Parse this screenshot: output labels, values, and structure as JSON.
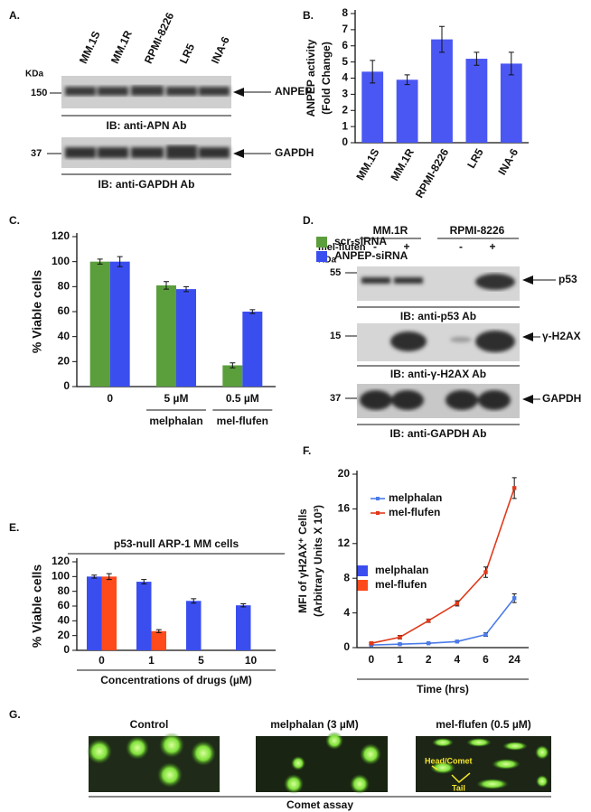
{
  "blots": {
    "A": {
      "label": "A.",
      "lanes": [
        "MM.1S",
        "MM.1R",
        "RPMI-8226",
        "LR5",
        "INA-6"
      ],
      "kda": "KDa",
      "rows": [
        {
          "marker": "150",
          "protein": "ANPEP",
          "antibody": "IB: anti-APN Ab"
        },
        {
          "marker": "37",
          "protein": "GAPDH",
          "antibody": "IB: anti-GAPDH Ab"
        }
      ]
    },
    "D": {
      "label": "D.",
      "groups": [
        "MM.1R",
        "RPMI-8226"
      ],
      "treatment": "mel-flufen",
      "signs": [
        "-",
        "+",
        "-",
        "+"
      ],
      "kda": "KDa",
      "rows": [
        {
          "marker": "55",
          "protein": "p53",
          "antibody": "IB: anti-p53 Ab"
        },
        {
          "marker": "15",
          "protein": "γ-H2AX",
          "antibody": "IB: anti-γ-H2AX Ab"
        },
        {
          "marker": "37",
          "protein": "GAPDH",
          "antibody": "IB: anti-GAPDH Ab"
        }
      ]
    }
  },
  "chart_data": [
    {
      "type": "bar",
      "label": "B.",
      "y_label": [
        "ANPEP activity",
        "(Fold Change)"
      ],
      "categories": [
        "MM.1S",
        "MM.1R",
        "RPMI-8226",
        "LR5",
        "INA-6"
      ],
      "values": [
        4.4,
        3.9,
        6.4,
        5.2,
        4.9
      ],
      "errors": [
        0.7,
        0.3,
        0.8,
        0.4,
        0.7
      ],
      "color": "#4a57f2",
      "ylim": [
        0,
        8
      ],
      "yticks": [
        0,
        1,
        2,
        3,
        4,
        5,
        6,
        7,
        8
      ]
    },
    {
      "type": "bar",
      "label": "C.",
      "y_label": "% Viable cells",
      "categories": [
        "0",
        "5 µM",
        "0.5 µM"
      ],
      "category_notes": [
        null,
        "melphalan",
        "mel-flufen"
      ],
      "series": [
        {
          "name": "scr-siRNA",
          "color": "#5b9e3c",
          "values": [
            100,
            81,
            17
          ],
          "errors": [
            2,
            3,
            2
          ]
        },
        {
          "name": "ANPEP-siRNA",
          "color": "#3a4ef0",
          "values": [
            100,
            78,
            60
          ],
          "errors": [
            4,
            2,
            1.5
          ]
        }
      ],
      "ylim": [
        0,
        120
      ],
      "yticks": [
        0,
        20,
        40,
        60,
        80,
        100,
        120
      ],
      "legend": "top-right"
    },
    {
      "type": "bar",
      "label": "E.",
      "title": "p53-null ARP-1 MM cells",
      "y_label": "% Viable cells",
      "x_label": "Concentrations of drugs (µM)",
      "categories": [
        "0",
        "1",
        "5",
        "10"
      ],
      "series": [
        {
          "name": "melphalan",
          "color": "#3a4ef0",
          "values": [
            100,
            93,
            67,
            61
          ],
          "errors": [
            2,
            3,
            3,
            2
          ]
        },
        {
          "name": "mel-flufen",
          "color": "#ff4a1c",
          "values": [
            100,
            26,
            0,
            0
          ],
          "errors": [
            4,
            2,
            0,
            0
          ]
        }
      ],
      "ylim": [
        0,
        120
      ],
      "yticks": [
        0,
        20,
        40,
        60,
        80,
        100,
        120
      ],
      "legend": "top-right"
    },
    {
      "type": "line",
      "label": "F.",
      "y_label": [
        "MFI of γH2AX⁺ Cells",
        "(Arbitrary Units X 10³)"
      ],
      "x_label": "Time (hrs)",
      "categories": [
        "0",
        "1",
        "2",
        "4",
        "6",
        "24"
      ],
      "series": [
        {
          "name": "melphalan",
          "color": "#4a7bea",
          "values": [
            0.3,
            0.4,
            0.5,
            0.7,
            1.5,
            5.7
          ],
          "errors": [
            0,
            0,
            0,
            0,
            0.2,
            0.5
          ]
        },
        {
          "name": "mel-flufen",
          "color": "#e03a1a",
          "values": [
            0.5,
            1.2,
            3.1,
            5.1,
            8.7,
            18.4
          ],
          "errors": [
            0.1,
            0.2,
            0.2,
            0.3,
            0.6,
            1.2
          ]
        }
      ],
      "ylim": [
        0,
        20
      ],
      "yticks": [
        0,
        4,
        8,
        12,
        16,
        20
      ],
      "legend": "top-left"
    }
  ],
  "comet": {
    "label": "G.",
    "panels": [
      "Control",
      "melphalan (3 µM)",
      "mel-flufen (0.5 µM)"
    ],
    "annotations": [
      "Head/Comet",
      "Tail"
    ],
    "caption": "Comet assay"
  }
}
